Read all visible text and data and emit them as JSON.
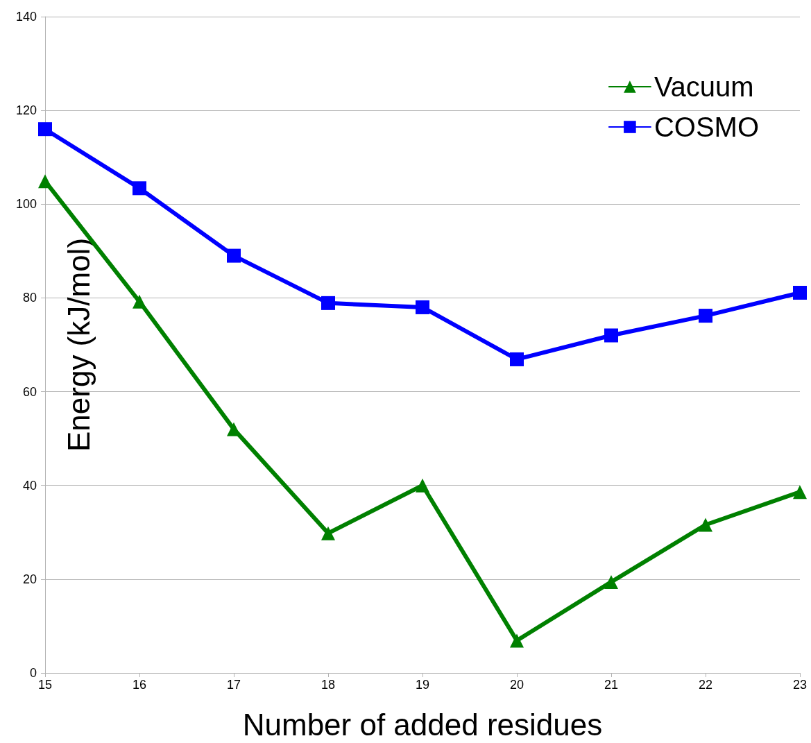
{
  "chart_data": {
    "type": "line",
    "xlabel": "Number of added residues",
    "ylabel": "Energy (kJ/mol)",
    "x": [
      15,
      16,
      17,
      18,
      19,
      20,
      21,
      22,
      23
    ],
    "series": [
      {
        "name": "Vacuum",
        "color": "#008000",
        "marker": "triangle",
        "values": [
          104.9,
          79.2,
          52.0,
          29.8,
          40.0,
          6.9,
          19.4,
          31.6,
          38.6
        ]
      },
      {
        "name": "COSMO",
        "color": "#0000ff",
        "marker": "square",
        "values": [
          116,
          103.4,
          89.0,
          78.9,
          78.0,
          66.9,
          72.0,
          76.2,
          81.1
        ]
      }
    ],
    "xlim": [
      15,
      23
    ],
    "xticks": [
      15,
      16,
      17,
      18,
      19,
      20,
      21,
      22,
      23
    ],
    "ylim": [
      0,
      140
    ],
    "yticks": [
      0,
      20,
      40,
      60,
      80,
      100,
      120,
      140
    ],
    "grid": "y",
    "legend": "top right",
    "line_style": "solid"
  }
}
